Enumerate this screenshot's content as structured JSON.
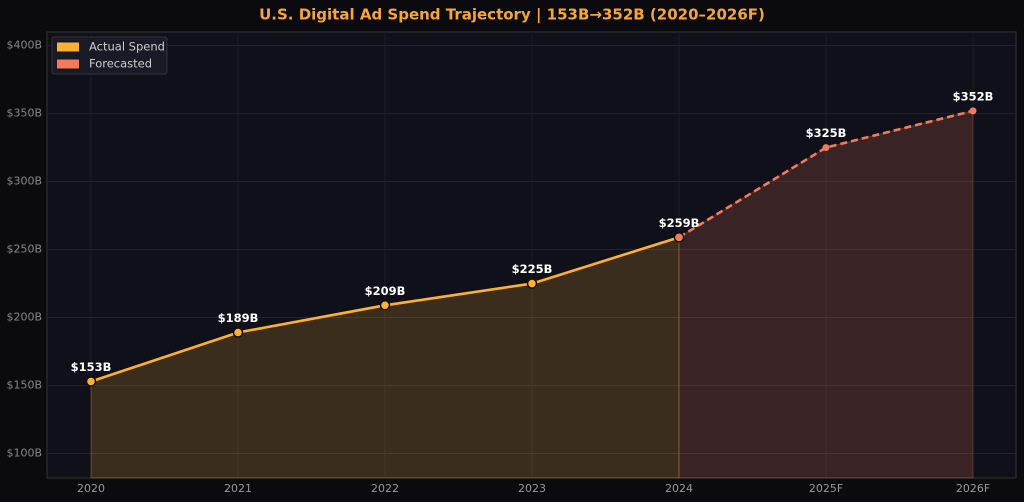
{
  "chart_data": {
    "type": "line",
    "title": "U.S. Digital Ad Spend Trajectory  |  153B→352B  (2020–2026F)",
    "categories": [
      "2020",
      "2021",
      "2022",
      "2023",
      "2024",
      "2025F",
      "2026F"
    ],
    "series": [
      {
        "name": "Actual Spend",
        "color": "#ffb02e",
        "dashed": false,
        "values": [
          153,
          189,
          209,
          225,
          259,
          null,
          null
        ],
        "value_labels": [
          "$153B",
          "$189B",
          "$209B",
          "$225B",
          "$259B",
          null,
          null
        ]
      },
      {
        "name": "Forecasted",
        "color": "#f47a58",
        "dashed": true,
        "values": [
          null,
          null,
          null,
          null,
          259,
          325,
          352
        ],
        "value_labels": [
          null,
          null,
          null,
          null,
          null,
          "$325B",
          "$352B"
        ]
      }
    ],
    "ylim": [
      82,
      410
    ],
    "yticks": [
      {
        "value": 100,
        "label": "$100B"
      },
      {
        "value": 150,
        "label": "$150B"
      },
      {
        "value": 200,
        "label": "$200B"
      },
      {
        "value": 250,
        "label": "$250B"
      },
      {
        "value": 300,
        "label": "$300B"
      },
      {
        "value": 350,
        "label": "$350B"
      },
      {
        "value": 400,
        "label": "$400B"
      }
    ],
    "grid": true,
    "legend": "upper left"
  }
}
